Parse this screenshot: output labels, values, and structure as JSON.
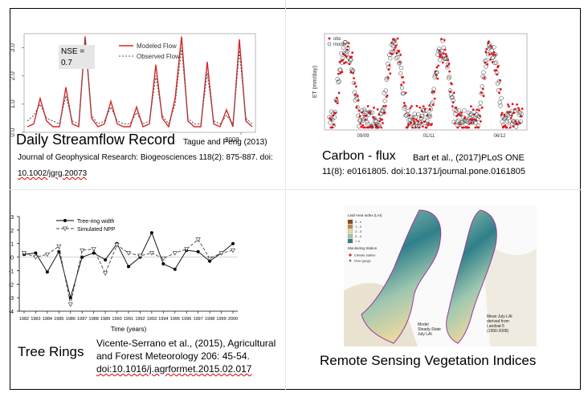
{
  "panels": {
    "streamflow": {
      "caption": "Daily Streamflow Record",
      "ref_tail": "Tague and Peng (2013)",
      "ref_line2": "Journal of Geophysical Research: Biogeosciences 118(2): 875-887. doi:",
      "ref_line3": "10.1002/jgrg.20073",
      "legend": [
        "Modeled Flow",
        "Observed Flow"
      ],
      "nse_label": "NSE =",
      "nse_value": "0.7",
      "y_ticks": [
        "0.0",
        "1.0",
        "2.0",
        "3.0"
      ],
      "x_tick": "2008",
      "colors": {
        "modeled": "#d62728",
        "observed": "#555555"
      }
    },
    "carbon": {
      "caption": "Carbon - flux",
      "ref_line1": "Bart et al., (2017)PLoS ONE",
      "ref_line2": "11(8): e0161805. doi:10.1371/journal.pone.0161805",
      "legend": [
        "obs",
        "model"
      ],
      "ylabel": "ET (mm/day)",
      "x_ticks": [
        "09/09",
        "01/11",
        "06/12"
      ],
      "colors": {
        "obs": "#e8141c",
        "model": "#333333"
      }
    },
    "treering": {
      "caption": "Tree Rings",
      "ref_line1": "Vicente-Serrano et al., (2015), Agricultural",
      "ref_line2": "and Forest Meteorology 206: 45-54.",
      "ref_line3": "doi:10.1016/j.agrformet.2015.02.017",
      "legend": [
        "Tree-ring width",
        "Simulated NPP"
      ],
      "xlabel": "Time (years)"
    },
    "remote": {
      "caption": "Remote Sensing Vegetation Indices",
      "map_title": "Leaf Area Index (LAI)",
      "lai_classes": [
        "0 - 1",
        "1 - 2",
        "2 - 3",
        "3 - 4",
        "> 4"
      ],
      "lai_colors": [
        "#8b4a1c",
        "#c08a4a",
        "#e9d9a0",
        "#9ec7b0",
        "#2f7f8a"
      ],
      "station_title": "Monitoring Station",
      "station_items": [
        "Climate station",
        "Flow gauge"
      ],
      "label_model": "Model\nSteady-State\nJuly LAI",
      "label_mean": "Mean July LAI\nderived from\nLandsat 5\n(1990-2008)"
    }
  },
  "chart_data": [
    {
      "type": "line",
      "title": "",
      "xlabel": "",
      "ylabel": "",
      "ylim": [
        0,
        3.5
      ],
      "x_ticks": [
        "2008"
      ],
      "series": [
        {
          "name": "Modeled Flow",
          "values": [
            0.2,
            0.3,
            1.2,
            0.4,
            0.2,
            0.2,
            1.6,
            0.3,
            0.2,
            3.4,
            0.5,
            0.2,
            0.3,
            1.1,
            0.3,
            0.2,
            0.2,
            0.9,
            0.2,
            0.3,
            2.4,
            0.5,
            0.2,
            1.2,
            3.4,
            0.4,
            0.2,
            0.2,
            2.5,
            0.3,
            0.2,
            0.8,
            0.2,
            3.3,
            0.4,
            0.2
          ]
        },
        {
          "name": "Observed Flow",
          "values": [
            0.4,
            0.6,
            1.0,
            0.5,
            0.4,
            0.3,
            1.3,
            0.4,
            0.3,
            3.3,
            0.6,
            0.3,
            0.4,
            0.9,
            0.4,
            0.3,
            0.3,
            0.7,
            0.3,
            0.4,
            2.0,
            0.6,
            0.3,
            1.0,
            3.0,
            0.5,
            0.3,
            0.3,
            2.1,
            0.4,
            0.3,
            0.6,
            0.3,
            2.9,
            0.5,
            0.3
          ]
        }
      ]
    },
    {
      "type": "line",
      "title": "",
      "xlabel": "Time (years)",
      "ylabel": "",
      "ylim": [
        -4,
        3
      ],
      "x": [
        1982,
        1983,
        1984,
        1985,
        1986,
        1987,
        1988,
        1989,
        1990,
        1991,
        1992,
        1993,
        1994,
        1995,
        1996,
        1997,
        1998,
        1999,
        2000
      ],
      "series": [
        {
          "name": "Tree-ring width",
          "values": [
            0.2,
            0.3,
            -1.1,
            0.4,
            -3.0,
            0.0,
            0.3,
            -0.2,
            1.0,
            -0.7,
            0.0,
            1.8,
            -0.5,
            -0.9,
            0.5,
            0.4,
            -0.3,
            0.3,
            1.0
          ]
        },
        {
          "name": "Simulated NPP",
          "values": [
            0.3,
            0.0,
            0.2,
            0.8,
            -3.5,
            0.5,
            0.6,
            -1.2,
            0.9,
            0.3,
            0.1,
            0.3,
            -0.1,
            0.3,
            0.6,
            1.3,
            -0.1,
            0.3,
            0.5
          ]
        }
      ]
    },
    {
      "type": "scatter",
      "title": "",
      "xlabel": "",
      "ylabel": "ET (mm/day)",
      "x_ticks": [
        "09/09",
        "01/11",
        "06/12"
      ],
      "series": [
        {
          "name": "obs"
        },
        {
          "name": "model"
        }
      ]
    }
  ]
}
